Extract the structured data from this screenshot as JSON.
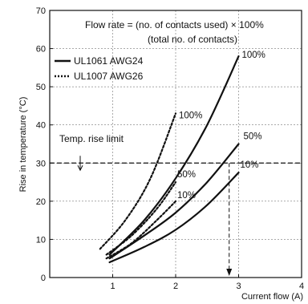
{
  "chart_data": {
    "type": "line",
    "title": "",
    "xlabel": "Current flow (A)",
    "ylabel": "Rise in temperature (°C)",
    "xlim": [
      0,
      4
    ],
    "ylim": [
      0,
      70
    ],
    "x_ticks": [
      "1",
      "2",
      "3",
      "4"
    ],
    "y_ticks": [
      "0",
      "10",
      "20",
      "30",
      "40",
      "50",
      "60",
      "70"
    ],
    "grid": true,
    "legend_position": "top-left",
    "legend": [
      {
        "label": "UL1061 AWG24",
        "style": "solid"
      },
      {
        "label": "UL1007 AWG26",
        "style": "dotted"
      }
    ],
    "annotations": {
      "flow_rate_formula": "Flow rate = (no. of contacts used) × 100%",
      "flow_rate_denominator": "(total no. of contacts)",
      "temp_limit_label": "Temp. rise limit",
      "temp_limit_value": 30,
      "marked_current": 2.85
    },
    "series": [
      {
        "name": "UL1061 AWG24 100%",
        "label": "100%",
        "style": "solid",
        "x": [
          0.95,
          1.5,
          2.0,
          2.5,
          3.0
        ],
        "y": [
          6,
          15,
          26,
          40,
          58
        ]
      },
      {
        "name": "UL1061 AWG24 50%",
        "label": "50%",
        "style": "solid",
        "x": [
          0.95,
          1.5,
          2.0,
          2.5,
          3.0
        ],
        "y": [
          5,
          11,
          17,
          25,
          35
        ]
      },
      {
        "name": "UL1061 AWG24 10%",
        "label": "10%",
        "style": "solid",
        "x": [
          0.95,
          1.5,
          2.0,
          2.5,
          3.0
        ],
        "y": [
          4,
          8,
          12.5,
          19,
          27.5
        ]
      },
      {
        "name": "UL1007 AWG26 100%",
        "label": "100%",
        "style": "dotted",
        "x": [
          0.8,
          1.2,
          1.6,
          2.0
        ],
        "y": [
          7.5,
          15,
          26,
          43
        ]
      },
      {
        "name": "UL1007 AWG26 50%",
        "label": "50%",
        "style": "dotted",
        "x": [
          0.9,
          1.3,
          1.7,
          2.0
        ],
        "y": [
          6,
          11,
          18,
          25
        ]
      },
      {
        "name": "UL1007 AWG26 10%",
        "label": "10%",
        "style": "dotted",
        "x": [
          0.9,
          1.3,
          1.7,
          2.0
        ],
        "y": [
          5,
          9,
          15,
          20
        ]
      }
    ]
  }
}
